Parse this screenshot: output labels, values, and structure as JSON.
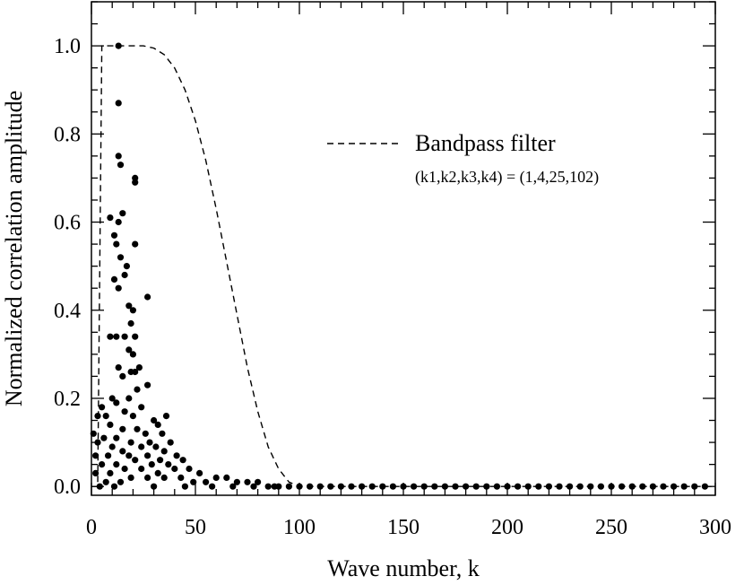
{
  "chart_data": {
    "type": "scatter",
    "xlabel": "Wave number, k",
    "ylabel": "Normalized correlation amplitude",
    "xlim": [
      0,
      300
    ],
    "ylim": [
      -0.02,
      1.1
    ],
    "x_ticks": [
      0,
      50,
      100,
      150,
      200,
      250,
      300
    ],
    "x_tick_labels": [
      "0",
      "50",
      "100",
      "150",
      "200",
      "250",
      "300"
    ],
    "y_ticks": [
      0.0,
      0.2,
      0.4,
      0.6,
      0.8,
      1.0
    ],
    "y_tick_labels": [
      "0.0",
      "0.2",
      "0.4",
      "0.6",
      "0.8",
      "1.0"
    ],
    "grid": false,
    "legend": {
      "placement": "top-right",
      "label": "Bandpass filter",
      "sublabel": "(k1,k2,k3,k4) = (1,4,25,102)"
    },
    "series": [
      {
        "style": "scatter",
        "points": [
          [
            13,
            1.0
          ],
          [
            13,
            0.87
          ],
          [
            13,
            0.75
          ],
          [
            14,
            0.73
          ],
          [
            21,
            0.7
          ],
          [
            21,
            0.69
          ],
          [
            9,
            0.61
          ],
          [
            15,
            0.62
          ],
          [
            13,
            0.6
          ],
          [
            11,
            0.57
          ],
          [
            12,
            0.55
          ],
          [
            21,
            0.55
          ],
          [
            14,
            0.52
          ],
          [
            17,
            0.5
          ],
          [
            16,
            0.48
          ],
          [
            11,
            0.47
          ],
          [
            13,
            0.45
          ],
          [
            27,
            0.43
          ],
          [
            18,
            0.41
          ],
          [
            20,
            0.4
          ],
          [
            19,
            0.37
          ],
          [
            12,
            0.34
          ],
          [
            16,
            0.34
          ],
          [
            21,
            0.34
          ],
          [
            9,
            0.34
          ],
          [
            18,
            0.31
          ],
          [
            20,
            0.3
          ],
          [
            13,
            0.27
          ],
          [
            23,
            0.27
          ],
          [
            19,
            0.26
          ],
          [
            21,
            0.26
          ],
          [
            15,
            0.25
          ],
          [
            27,
            0.23
          ],
          [
            22,
            0.22
          ],
          [
            10,
            0.2
          ],
          [
            18,
            0.2
          ],
          [
            12,
            0.19
          ],
          [
            24,
            0.18
          ],
          [
            5,
            0.18
          ],
          [
            16,
            0.17
          ],
          [
            7,
            0.16
          ],
          [
            20,
            0.16
          ],
          [
            3,
            0.16
          ],
          [
            30,
            0.15
          ],
          [
            36,
            0.16
          ],
          [
            32,
            0.14
          ],
          [
            9,
            0.14
          ],
          [
            15,
            0.13
          ],
          [
            22,
            0.13
          ],
          [
            1,
            0.12
          ],
          [
            26,
            0.12
          ],
          [
            34,
            0.12
          ],
          [
            6,
            0.11
          ],
          [
            12,
            0.11
          ],
          [
            28,
            0.1
          ],
          [
            19,
            0.1
          ],
          [
            38,
            0.1
          ],
          [
            3,
            0.1
          ],
          [
            10,
            0.09
          ],
          [
            24,
            0.09
          ],
          [
            31,
            0.09
          ],
          [
            15,
            0.08
          ],
          [
            35,
            0.08
          ],
          [
            41,
            0.07
          ],
          [
            2,
            0.07
          ],
          [
            8,
            0.07
          ],
          [
            18,
            0.07
          ],
          [
            27,
            0.07
          ],
          [
            21,
            0.06
          ],
          [
            33,
            0.06
          ],
          [
            44,
            0.06
          ],
          [
            5,
            0.05
          ],
          [
            12,
            0.05
          ],
          [
            29,
            0.05
          ],
          [
            37,
            0.05
          ],
          [
            16,
            0.04
          ],
          [
            24,
            0.04
          ],
          [
            40,
            0.04
          ],
          [
            47,
            0.04
          ],
          [
            2,
            0.03
          ],
          [
            9,
            0.03
          ],
          [
            32,
            0.03
          ],
          [
            52,
            0.03
          ],
          [
            19,
            0.02
          ],
          [
            35,
            0.02
          ],
          [
            43,
            0.02
          ],
          [
            60,
            0.02
          ],
          [
            65,
            0.02
          ],
          [
            27,
            0.02
          ],
          [
            7,
            0.01
          ],
          [
            14,
            0.01
          ],
          [
            49,
            0.01
          ],
          [
            55,
            0.01
          ],
          [
            70,
            0.01
          ],
          [
            75,
            0.01
          ],
          [
            80,
            0.01
          ],
          [
            85,
            0.0
          ],
          [
            90,
            0.0
          ],
          [
            95,
            0.0
          ],
          [
            100,
            0.0
          ],
          [
            105,
            0.0
          ],
          [
            110,
            0.0
          ],
          [
            115,
            0.0
          ],
          [
            120,
            0.0
          ],
          [
            125,
            0.0
          ],
          [
            130,
            0.0
          ],
          [
            135,
            0.0
          ],
          [
            140,
            0.0
          ],
          [
            145,
            0.0
          ],
          [
            150,
            0.0
          ],
          [
            155,
            0.0
          ],
          [
            160,
            0.0
          ],
          [
            165,
            0.0
          ],
          [
            170,
            0.0
          ],
          [
            175,
            0.0
          ],
          [
            180,
            0.0
          ],
          [
            185,
            0.0
          ],
          [
            190,
            0.0
          ],
          [
            195,
            0.0
          ],
          [
            200,
            0.0
          ],
          [
            205,
            0.0
          ],
          [
            210,
            0.0
          ],
          [
            215,
            0.0
          ],
          [
            220,
            0.0
          ],
          [
            225,
            0.0
          ],
          [
            230,
            0.0
          ],
          [
            235,
            0.0
          ],
          [
            240,
            0.0
          ],
          [
            245,
            0.0
          ],
          [
            250,
            0.0
          ],
          [
            255,
            0.0
          ],
          [
            260,
            0.0
          ],
          [
            265,
            0.0
          ],
          [
            270,
            0.0
          ],
          [
            275,
            0.0
          ],
          [
            280,
            0.0
          ],
          [
            285,
            0.0
          ],
          [
            290,
            0.0
          ],
          [
            295,
            0.0
          ],
          [
            4,
            0.0
          ],
          [
            11,
            0.0
          ],
          [
            30,
            0.0
          ],
          [
            45,
            0.0
          ],
          [
            58,
            0.0
          ],
          [
            68,
            0.0
          ],
          [
            78,
            0.0
          ],
          [
            88,
            0.0
          ]
        ]
      },
      {
        "name": "Bandpass filter",
        "style": "dashed-line",
        "x": [
          0,
          3,
          4,
          5,
          10,
          20,
          25,
          30,
          35,
          40,
          45,
          50,
          55,
          60,
          65,
          70,
          75,
          80,
          85,
          90,
          95,
          100
        ],
        "y": [
          0.0,
          0.0,
          0.5,
          1.0,
          1.0,
          1.0,
          1.0,
          0.995,
          0.98,
          0.95,
          0.9,
          0.83,
          0.74,
          0.63,
          0.51,
          0.39,
          0.27,
          0.17,
          0.09,
          0.04,
          0.01,
          0.0
        ]
      }
    ]
  }
}
